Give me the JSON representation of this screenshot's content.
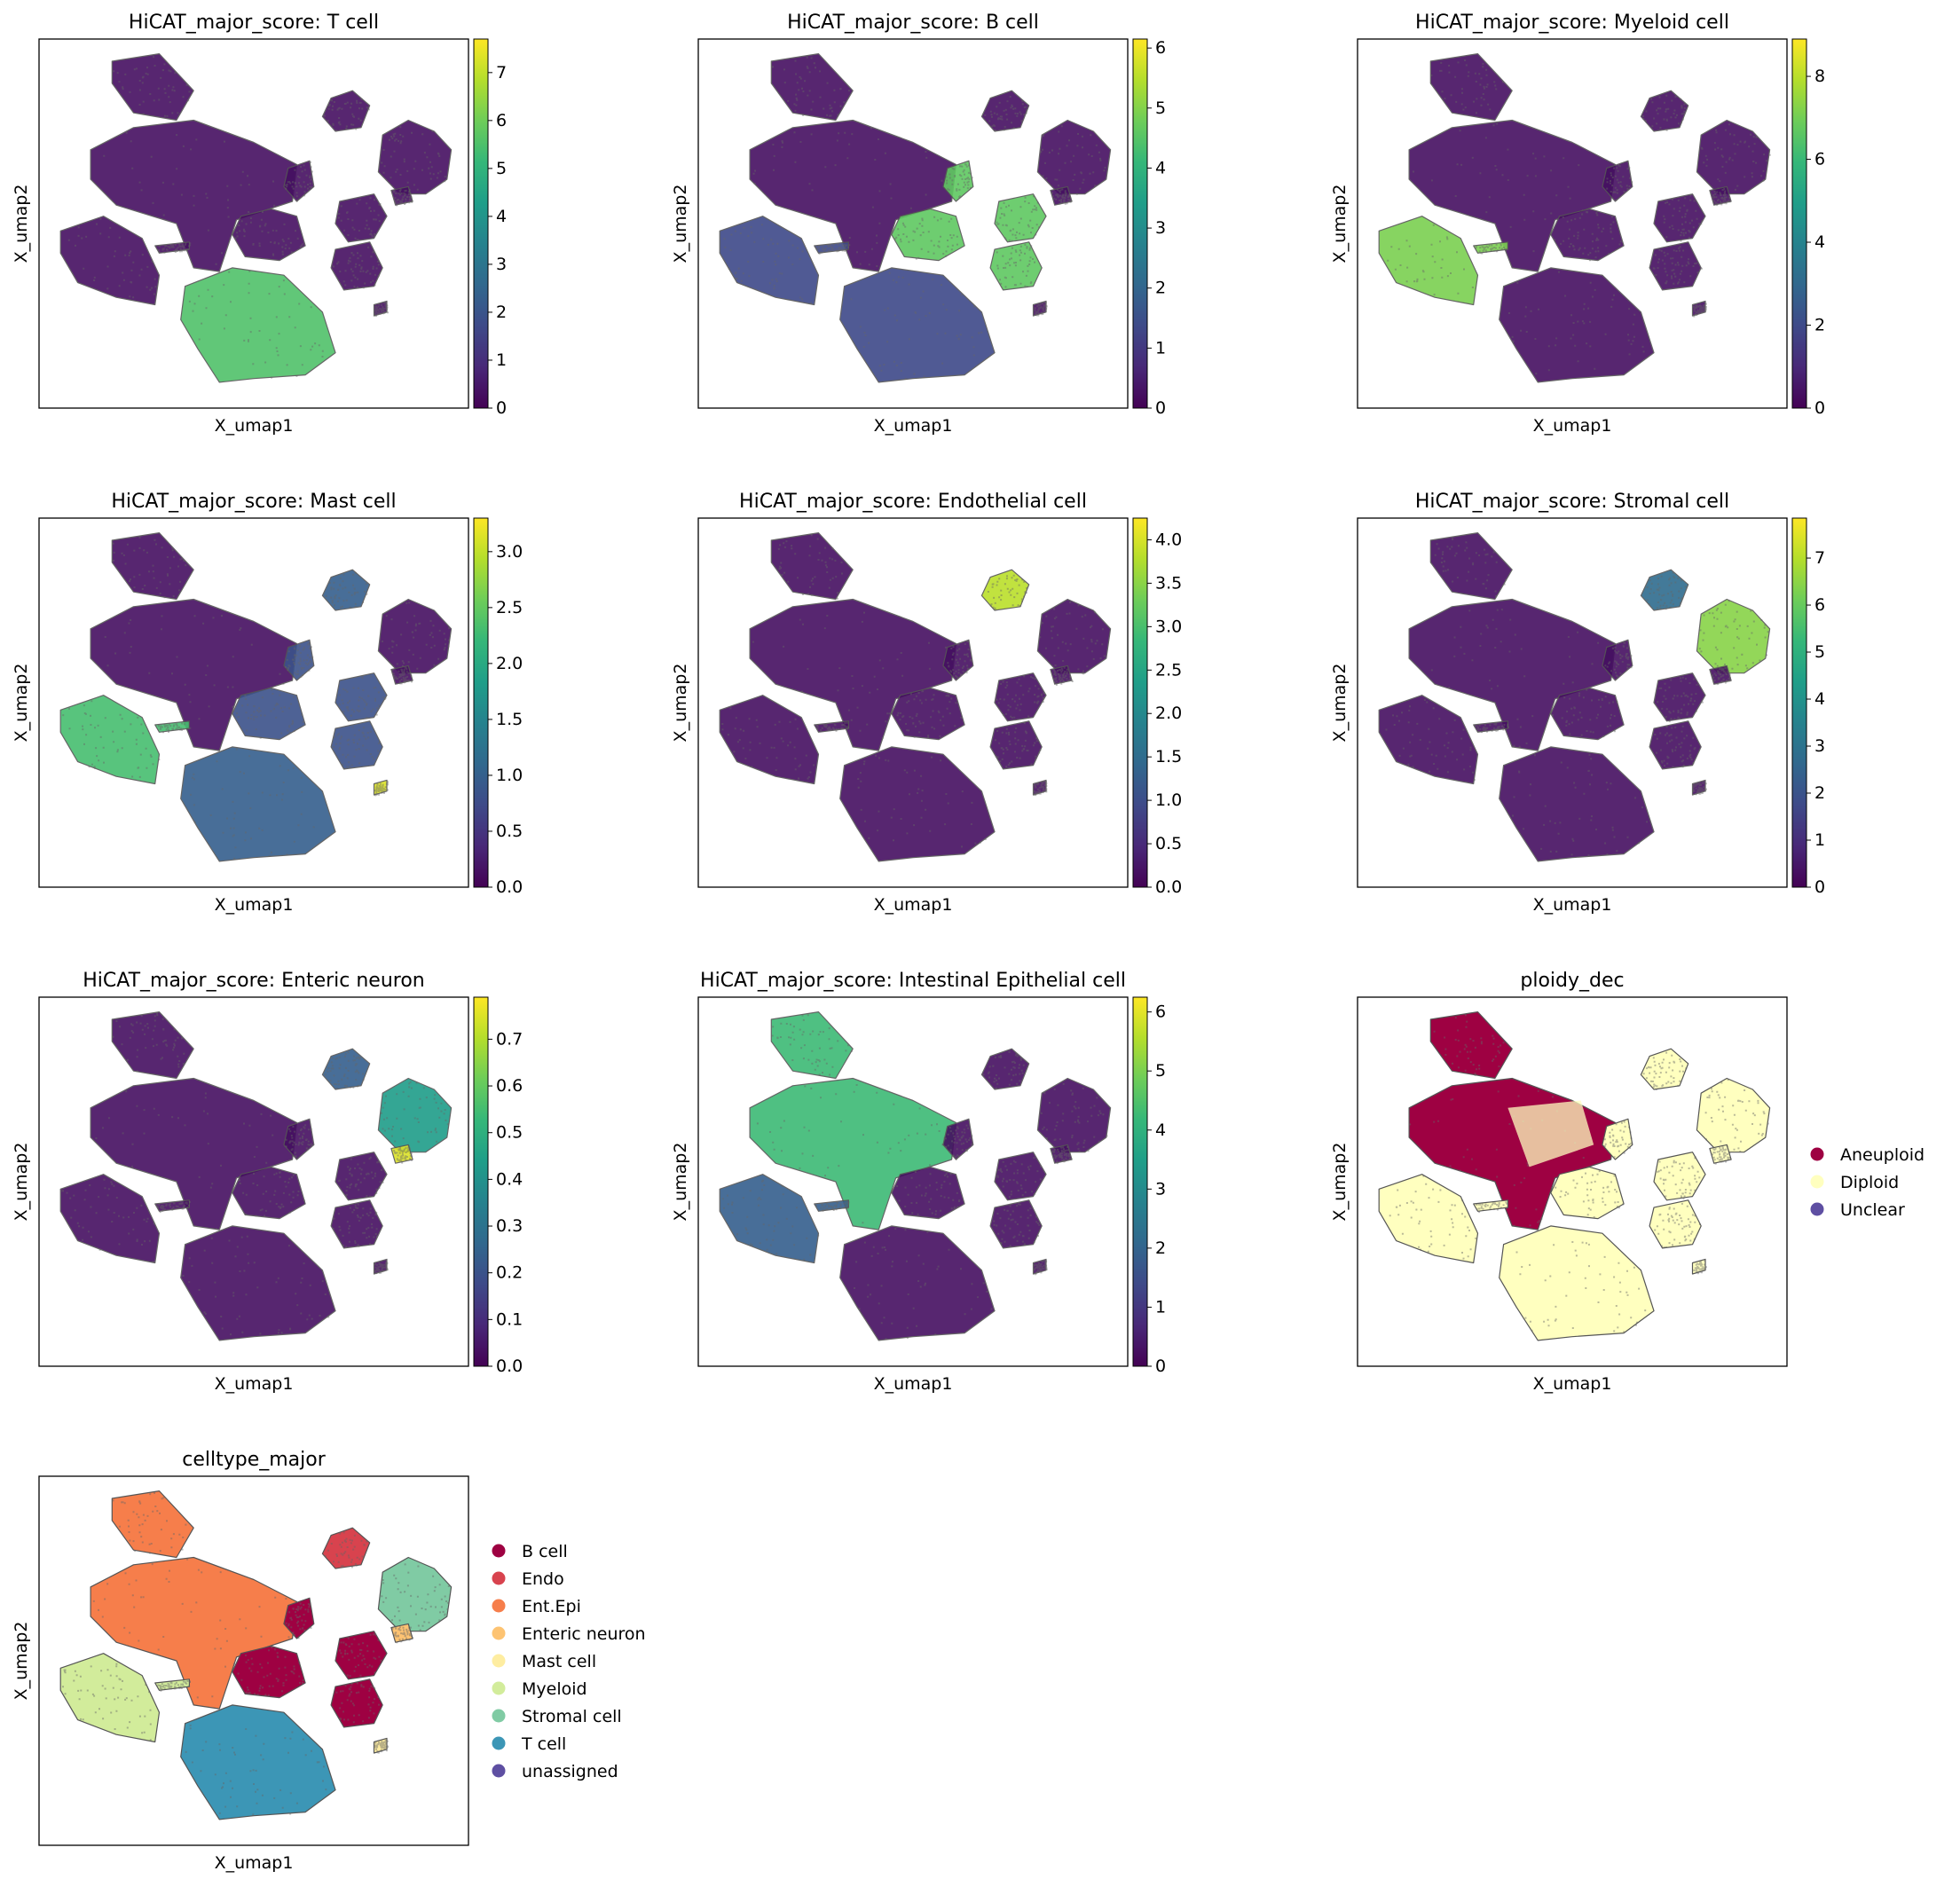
{
  "figure": {
    "type": "umap_grid"
  },
  "chart_data": [
    {
      "type": "scatter",
      "title": "HiCAT_major_score: T cell",
      "xlabel": "X_umap1",
      "ylabel": "X_umap2",
      "legend": "colorbar-right",
      "colorbar": {
        "cmap": "viridis",
        "vmin": 0,
        "vmax": 7.7,
        "ticks": [
          "0",
          "1",
          "2",
          "3",
          "4",
          "5",
          "6",
          "7"
        ]
      },
      "highlight": {
        "T cell": 0.72
      }
    },
    {
      "type": "scatter",
      "title": "HiCAT_major_score: B cell",
      "xlabel": "X_umap1",
      "ylabel": "X_umap2",
      "legend": "colorbar-right",
      "colorbar": {
        "cmap": "viridis",
        "vmin": 0,
        "vmax": 6.15,
        "ticks": [
          "0",
          "1",
          "2",
          "3",
          "4",
          "5",
          "6"
        ]
      },
      "highlight": {
        "B cell": 0.75,
        "T cell": 0.22,
        "Myeloid": 0.22
      }
    },
    {
      "type": "scatter",
      "title": "HiCAT_major_score: Myeloid cell",
      "xlabel": "X_umap1",
      "ylabel": "X_umap2",
      "legend": "colorbar-right",
      "colorbar": {
        "cmap": "viridis",
        "vmin": 0,
        "vmax": 8.9,
        "ticks": [
          "0",
          "2",
          "4",
          "6",
          "8"
        ]
      },
      "highlight": {
        "Myeloid": 0.8
      }
    },
    {
      "type": "scatter",
      "title": "HiCAT_major_score: Mast cell",
      "xlabel": "X_umap1",
      "ylabel": "X_umap2",
      "legend": "colorbar-right",
      "colorbar": {
        "cmap": "viridis",
        "vmin": 0,
        "vmax": 3.3,
        "ticks": [
          "0.0",
          "0.5",
          "1.0",
          "1.5",
          "2.0",
          "2.5",
          "3.0"
        ]
      },
      "highlight": {
        "Myeloid": 0.7,
        "T cell": 0.3,
        "B cell": 0.25,
        "Mast cell": 0.95,
        "Endo": 0.3
      }
    },
    {
      "type": "scatter",
      "title": "HiCAT_major_score: Endothelial cell",
      "xlabel": "X_umap1",
      "ylabel": "X_umap2",
      "legend": "colorbar-right",
      "colorbar": {
        "cmap": "viridis",
        "vmin": 0,
        "vmax": 4.25,
        "ticks": [
          "0.0",
          "0.5",
          "1.0",
          "1.5",
          "2.0",
          "2.5",
          "3.0",
          "3.5",
          "4.0"
        ]
      },
      "highlight": {
        "Endo": 0.9
      }
    },
    {
      "type": "scatter",
      "title": "HiCAT_major_score: Stromal cell",
      "xlabel": "X_umap1",
      "ylabel": "X_umap2",
      "legend": "colorbar-right",
      "colorbar": {
        "cmap": "viridis",
        "vmin": 0,
        "vmax": 7.85,
        "ticks": [
          "0",
          "1",
          "2",
          "3",
          "4",
          "5",
          "6",
          "7"
        ]
      },
      "highlight": {
        "Stromal cell": 0.82,
        "Endo": 0.35
      }
    },
    {
      "type": "scatter",
      "title": "HiCAT_major_score: Enteric neuron",
      "xlabel": "X_umap1",
      "ylabel": "X_umap2",
      "legend": "colorbar-right",
      "colorbar": {
        "cmap": "viridis",
        "vmin": 0,
        "vmax": 0.79,
        "ticks": [
          "0.0",
          "0.1",
          "0.2",
          "0.3",
          "0.4",
          "0.5",
          "0.6",
          "0.7"
        ]
      },
      "highlight": {
        "Enteric neuron": 0.95,
        "Stromal cell": 0.55,
        "Endo": 0.3
      }
    },
    {
      "type": "scatter",
      "title": "HiCAT_major_score: Intestinal Epithelial cell",
      "xlabel": "X_umap1",
      "ylabel": "X_umap2",
      "legend": "colorbar-right",
      "colorbar": {
        "cmap": "viridis",
        "vmin": 0,
        "vmax": 6.25,
        "ticks": [
          "0",
          "1",
          "2",
          "3",
          "4",
          "5",
          "6"
        ]
      },
      "highlight": {
        "Ent.Epi": 0.68,
        "Myeloid": 0.3
      }
    },
    {
      "type": "scatter",
      "title": "ploidy_dec",
      "xlabel": "X_umap1",
      "ylabel": "X_umap2",
      "legend": "right",
      "categories": [
        {
          "name": "Aneuploid",
          "color": "#9e0142"
        },
        {
          "name": "Diploid",
          "color": "#ffffbf"
        },
        {
          "name": "Unclear",
          "color": "#5e4fa2"
        }
      ],
      "mapping": {
        "Ent.Epi": "Aneuploid",
        "default": "Diploid"
      }
    },
    {
      "type": "scatter",
      "title": "celltype_major",
      "xlabel": "X_umap1",
      "ylabel": "X_umap2",
      "legend": "right",
      "categories": [
        {
          "name": "B cell",
          "color": "#9e0142"
        },
        {
          "name": "Endo",
          "color": "#d8434e"
        },
        {
          "name": "Ent.Epi",
          "color": "#f67e4b"
        },
        {
          "name": "Enteric neuron",
          "color": "#fdc372"
        },
        {
          "name": "Mast cell",
          "color": "#feeda1"
        },
        {
          "name": "Myeloid",
          "color": "#d2ec9b"
        },
        {
          "name": "Stromal cell",
          "color": "#80cba4"
        },
        {
          "name": "T cell",
          "color": "#3c96b6"
        },
        {
          "name": "unassigned",
          "color": "#5e4fa2"
        }
      ]
    }
  ]
}
